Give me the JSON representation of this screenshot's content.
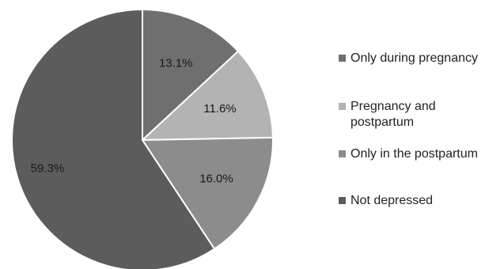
{
  "chart_data": {
    "type": "pie",
    "slices": [
      {
        "label": "Only during pregnancy",
        "value": 13.1,
        "display": "13.1%",
        "color": "#6f6f6f"
      },
      {
        "label": "Pregnancy and postpartum",
        "value": 11.6,
        "display": "11.6%",
        "color": "#b3b3b3"
      },
      {
        "label": "Only in the postpartum",
        "value": 16.0,
        "display": "16.0%",
        "color": "#8c8c8c"
      },
      {
        "label": "Not depressed",
        "value": 59.3,
        "display": "59.3%",
        "color": "#5c5c5c"
      }
    ],
    "legend_placement": "right"
  }
}
